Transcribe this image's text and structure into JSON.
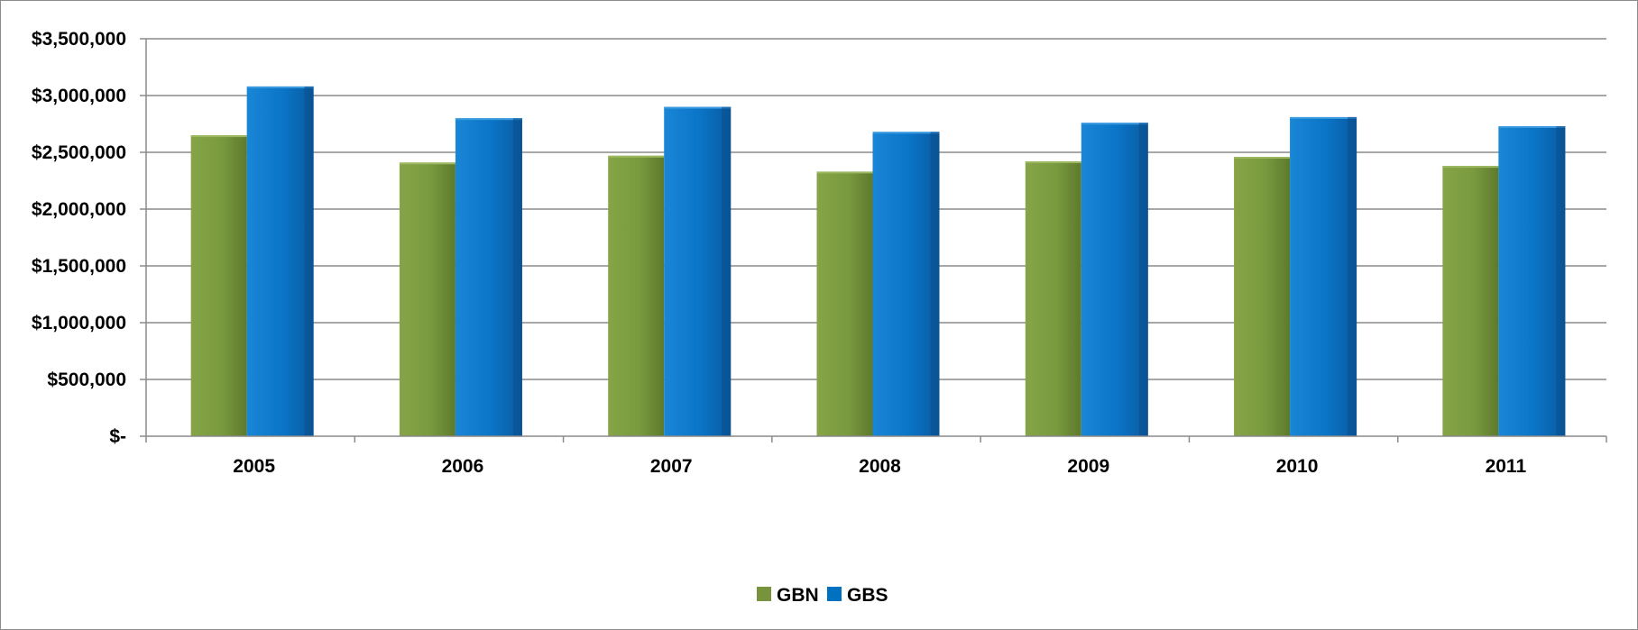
{
  "chart_data": {
    "type": "bar",
    "title": "",
    "xlabel": "",
    "ylabel": "",
    "categories": [
      "2005",
      "2006",
      "2007",
      "2008",
      "2009",
      "2010",
      "2011"
    ],
    "series": [
      {
        "name": "GBN",
        "color": "#77933C",
        "values": [
          2650000,
          2410000,
          2470000,
          2330000,
          2420000,
          2460000,
          2380000
        ]
      },
      {
        "name": "GBS",
        "color": "#0070C0",
        "values": [
          3080000,
          2800000,
          2900000,
          2680000,
          2760000,
          2810000,
          2730000
        ]
      }
    ],
    "ylim": [
      0,
      3500000
    ],
    "y_ticks": [
      {
        "value": 0,
        "label": "$-"
      },
      {
        "value": 500000,
        "label": "$500,000"
      },
      {
        "value": 1000000,
        "label": "$1,000,000"
      },
      {
        "value": 1500000,
        "label": "$1,500,000"
      },
      {
        "value": 2000000,
        "label": "$2,000,000"
      },
      {
        "value": 2500000,
        "label": "$2,500,000"
      },
      {
        "value": 3000000,
        "label": "$3,000,000"
      },
      {
        "value": 3500000,
        "label": "$3,500,000"
      }
    ],
    "grid": true,
    "legend": "bottom-center"
  }
}
